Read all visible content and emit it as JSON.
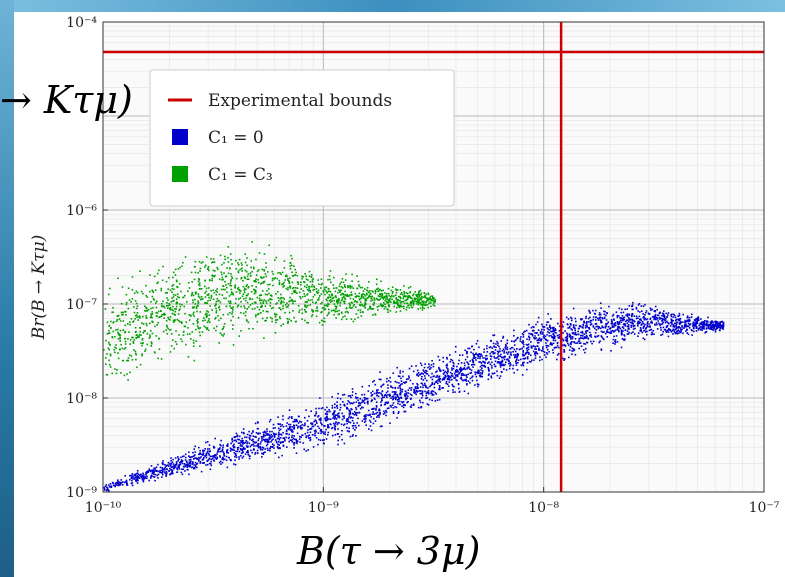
{
  "slide": {
    "left_overlay_text": "→ Kτμ)",
    "bottom_caption": "B(τ → 3μ)"
  },
  "chart_data": {
    "type": "scatter",
    "title": "",
    "xlabel": "",
    "ylabel": "Br(B → Kτμ)",
    "xscale": "log",
    "yscale": "log",
    "xlim": [
      1e-10,
      1e-07
    ],
    "ylim": [
      1e-09,
      0.0001
    ],
    "x_ticks": [
      {
        "value": 1e-10,
        "label": "10⁻¹⁰"
      },
      {
        "value": 1e-09,
        "label": "10⁻⁹"
      },
      {
        "value": 1e-08,
        "label": "10⁻⁸"
      },
      {
        "value": 1e-07,
        "label": "10⁻⁷"
      }
    ],
    "y_ticks": [
      {
        "value": 1e-09,
        "label": "10⁻⁹"
      },
      {
        "value": 1e-08,
        "label": "10⁻⁸"
      },
      {
        "value": 1e-07,
        "label": "10⁻⁷"
      },
      {
        "value": 1e-06,
        "label": "10⁻⁶"
      },
      {
        "value": 0.0001,
        "label": "10⁻⁴"
      }
    ],
    "grid": true,
    "legend_position": "top-left",
    "legend": [
      {
        "label": "Experimental bounds",
        "color": "#cc0000",
        "marker": "line"
      },
      {
        "label": "C₁ = 0",
        "color": "#0000cc",
        "marker": "square"
      },
      {
        "label": "C₁ = C₃",
        "color": "#00a000",
        "marker": "square"
      }
    ],
    "bounds": {
      "color": "#cc0000",
      "x_upper": 1.2e-08,
      "y_upper": 4.8e-05
    },
    "series": [
      {
        "name": "C₁ = 0",
        "color": "#0000cc",
        "region": {
          "x_range": [
            1e-10,
            6.5e-08
          ],
          "log_y_lower_at_x": [
            [
              -10.0,
              -9.0
            ],
            [
              -9.0,
              -8.6
            ],
            [
              -8.0,
              -7.7
            ],
            [
              -7.6,
              -7.45
            ],
            [
              -7.2,
              -7.3
            ]
          ],
          "log_y_upper_at_x": [
            [
              -10.0,
              -8.9
            ],
            [
              -9.0,
              -7.9
            ],
            [
              -8.0,
              -7.05
            ],
            [
              -7.6,
              -6.9
            ],
            [
              -7.2,
              -7.15
            ]
          ]
        }
      },
      {
        "name": "C₁ = C₃",
        "color": "#00a000",
        "region": {
          "x_range": [
            1e-10,
            3.2e-09
          ],
          "log_y_lower_at_x": [
            [
              -10.0,
              -8.05
            ],
            [
              -9.6,
              -7.65
            ],
            [
              -9.0,
              -7.3
            ],
            [
              -8.5,
              -7.05
            ]
          ],
          "log_y_upper_at_x": [
            [
              -10.0,
              -6.65
            ],
            [
              -9.6,
              -6.3
            ],
            [
              -9.35,
              -6.1
            ],
            [
              -9.0,
              -6.55
            ],
            [
              -8.5,
              -6.85
            ]
          ]
        }
      }
    ]
  }
}
